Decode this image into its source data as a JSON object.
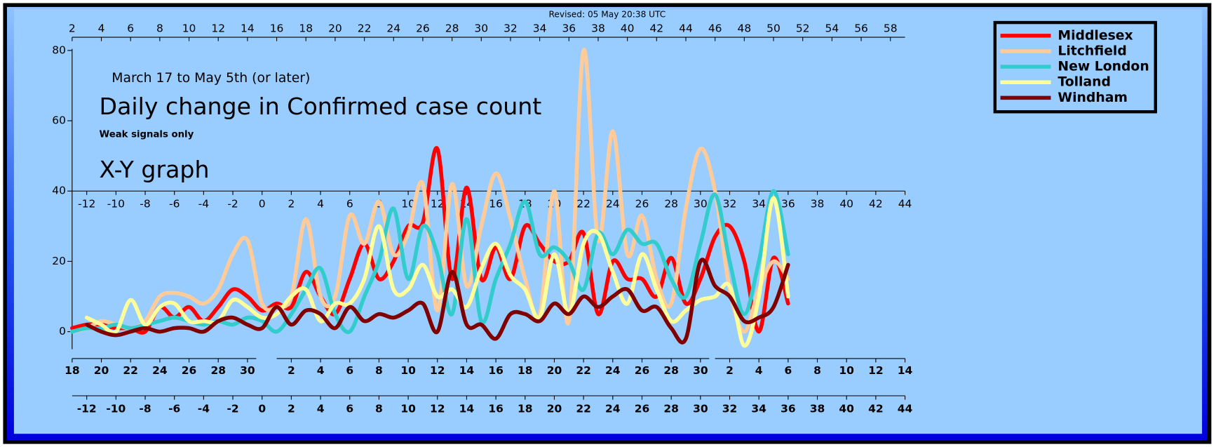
{
  "chart_data": {
    "type": "line",
    "revised": "Revised: 05 May 20:38 UTC",
    "subtitle": "March 17 to May 5th (or later)",
    "title": "Daily change in Confirmed case count",
    "note": "Weak signals only",
    "graph_label": "X-Y graph",
    "x": [
      2,
      3,
      4,
      5,
      6,
      7,
      8,
      9,
      10,
      11,
      12,
      13,
      14,
      15,
      16,
      17,
      18,
      19,
      20,
      21,
      22,
      23,
      24,
      25,
      26,
      27,
      28,
      29,
      30,
      31,
      32,
      33,
      34,
      35,
      36,
      37,
      38,
      39,
      40,
      41,
      42,
      43,
      44,
      45,
      46,
      47,
      48,
      49,
      50,
      51
    ],
    "xlim": [
      2,
      59
    ],
    "xticks": [
      2,
      4,
      6,
      8,
      10,
      12,
      14,
      16,
      18,
      20,
      22,
      24,
      26,
      28,
      30,
      32,
      34,
      36,
      38,
      40,
      42,
      44,
      46,
      48,
      50,
      52,
      54,
      56,
      58
    ],
    "x2ticks": [
      {
        "value": 3,
        "label": "-12"
      },
      {
        "value": 5,
        "label": "-10"
      },
      {
        "value": 7,
        "label": "-8"
      },
      {
        "value": 9,
        "label": "-6"
      },
      {
        "value": 11,
        "label": "-4"
      },
      {
        "value": 13,
        "label": "-2"
      },
      {
        "value": 15,
        "label": "0"
      },
      {
        "value": 17,
        "label": "2"
      },
      {
        "value": 19,
        "label": "4"
      },
      {
        "value": 21,
        "label": "6"
      },
      {
        "value": 23,
        "label": "8"
      },
      {
        "value": 25,
        "label": "10"
      },
      {
        "value": 27,
        "label": "12"
      },
      {
        "value": 29,
        "label": "14"
      },
      {
        "value": 31,
        "label": "16"
      },
      {
        "value": 33,
        "label": "18"
      },
      {
        "value": 35,
        "label": "20"
      },
      {
        "value": 37,
        "label": "22"
      },
      {
        "value": 39,
        "label": "24"
      },
      {
        "value": 41,
        "label": "26"
      },
      {
        "value": 43,
        "label": "28"
      },
      {
        "value": 45,
        "label": "30"
      },
      {
        "value": 47,
        "label": "32"
      },
      {
        "value": 49,
        "label": "34"
      },
      {
        "value": 51,
        "label": "36"
      },
      {
        "value": 53,
        "label": "38"
      },
      {
        "value": 55,
        "label": "40"
      },
      {
        "value": 57,
        "label": "42"
      },
      {
        "value": 59,
        "label": "44"
      }
    ],
    "date_ticks": [
      [
        {
          "value": 2,
          "label": "18"
        },
        {
          "value": 4,
          "label": "20"
        },
        {
          "value": 6,
          "label": "22"
        },
        {
          "value": 8,
          "label": "24"
        },
        {
          "value": 10,
          "label": "26"
        },
        {
          "value": 12,
          "label": "28"
        },
        {
          "value": 14,
          "label": "30"
        }
      ],
      [
        {
          "value": 17,
          "label": "2"
        },
        {
          "value": 19,
          "label": "4"
        },
        {
          "value": 21,
          "label": "6"
        },
        {
          "value": 23,
          "label": "8"
        },
        {
          "value": 25,
          "label": "10"
        },
        {
          "value": 27,
          "label": "12"
        },
        {
          "value": 29,
          "label": "14"
        },
        {
          "value": 31,
          "label": "16"
        },
        {
          "value": 33,
          "label": "18"
        },
        {
          "value": 35,
          "label": "20"
        },
        {
          "value": 37,
          "label": "22"
        },
        {
          "value": 39,
          "label": "24"
        },
        {
          "value": 41,
          "label": "26"
        },
        {
          "value": 43,
          "label": "28"
        },
        {
          "value": 45,
          "label": "30"
        }
      ],
      [
        {
          "value": 47,
          "label": "2"
        },
        {
          "value": 49,
          "label": "4"
        },
        {
          "value": 51,
          "label": "6"
        },
        {
          "value": 53,
          "label": "8"
        },
        {
          "value": 55,
          "label": "10"
        },
        {
          "value": 57,
          "label": "12"
        },
        {
          "value": 59,
          "label": "14"
        }
      ]
    ],
    "ylim": [
      -5,
      80
    ],
    "yticks": [
      0,
      20,
      40,
      60,
      80
    ],
    "series": [
      {
        "name": "Middlesex",
        "color": "#ff0000",
        "values": [
          1,
          2,
          2,
          1,
          1,
          0,
          7,
          4,
          7,
          3,
          7,
          12,
          10,
          6,
          8,
          7,
          17,
          10,
          5,
          15,
          25,
          15,
          20,
          30,
          31,
          52,
          15,
          41,
          15,
          24,
          15,
          30,
          25,
          20,
          20,
          28,
          5,
          20,
          15,
          15,
          10,
          21,
          8,
          15,
          27,
          30,
          20,
          0,
          21,
          8
        ]
      },
      {
        "name": "Litchfield",
        "color": "#ffcc99",
        "values": [
          0,
          1,
          3,
          2,
          1,
          3,
          10,
          11,
          10,
          8,
          12,
          22,
          26,
          8,
          7,
          10,
          32,
          10,
          10,
          33,
          25,
          37,
          22,
          28,
          42,
          6,
          42,
          13,
          30,
          45,
          32,
          15,
          5,
          40,
          3,
          80,
          26,
          57,
          22,
          33,
          15,
          8,
          35,
          52,
          40,
          12,
          0,
          12,
          20,
          15
        ]
      },
      {
        "name": "New London",
        "color": "#33cccc",
        "values": [
          0,
          1,
          1,
          2,
          1,
          2,
          3,
          4,
          3,
          2,
          3,
          2,
          4,
          3,
          0,
          5,
          12,
          18,
          5,
          0,
          10,
          20,
          35,
          15,
          30,
          22,
          5,
          32,
          3,
          15,
          25,
          37,
          22,
          24,
          20,
          12,
          28,
          22,
          29,
          25,
          25,
          15,
          10,
          25,
          39,
          20,
          5,
          20,
          40,
          22
        ]
      },
      {
        "name": "Tolland",
        "color": "#ffff99",
        "values": [
          null,
          4,
          2,
          0,
          9,
          2,
          7,
          8,
          3,
          3,
          3,
          9,
          7,
          4,
          5,
          10,
          12,
          3,
          8,
          8,
          15,
          30,
          12,
          12,
          19,
          10,
          12,
          7,
          18,
          25,
          16,
          12,
          4,
          22,
          5,
          25,
          28,
          17,
          8,
          22,
          12,
          3,
          6,
          9,
          10,
          13,
          -4,
          10,
          38,
          10
        ]
      },
      {
        "name": "Windham",
        "color": "#800000",
        "values": [
          null,
          2,
          0,
          -1,
          0,
          1,
          0,
          1,
          1,
          0,
          3,
          4,
          2,
          1,
          7,
          2,
          6,
          5,
          1,
          7,
          3,
          5,
          4,
          6,
          8,
          0,
          17,
          2,
          2,
          -2,
          5,
          5,
          3,
          8,
          5,
          10,
          7,
          10,
          12,
          6,
          7,
          1,
          -2,
          20,
          13,
          10,
          3,
          4,
          7,
          19
        ]
      }
    ],
    "legend": "top-right"
  }
}
